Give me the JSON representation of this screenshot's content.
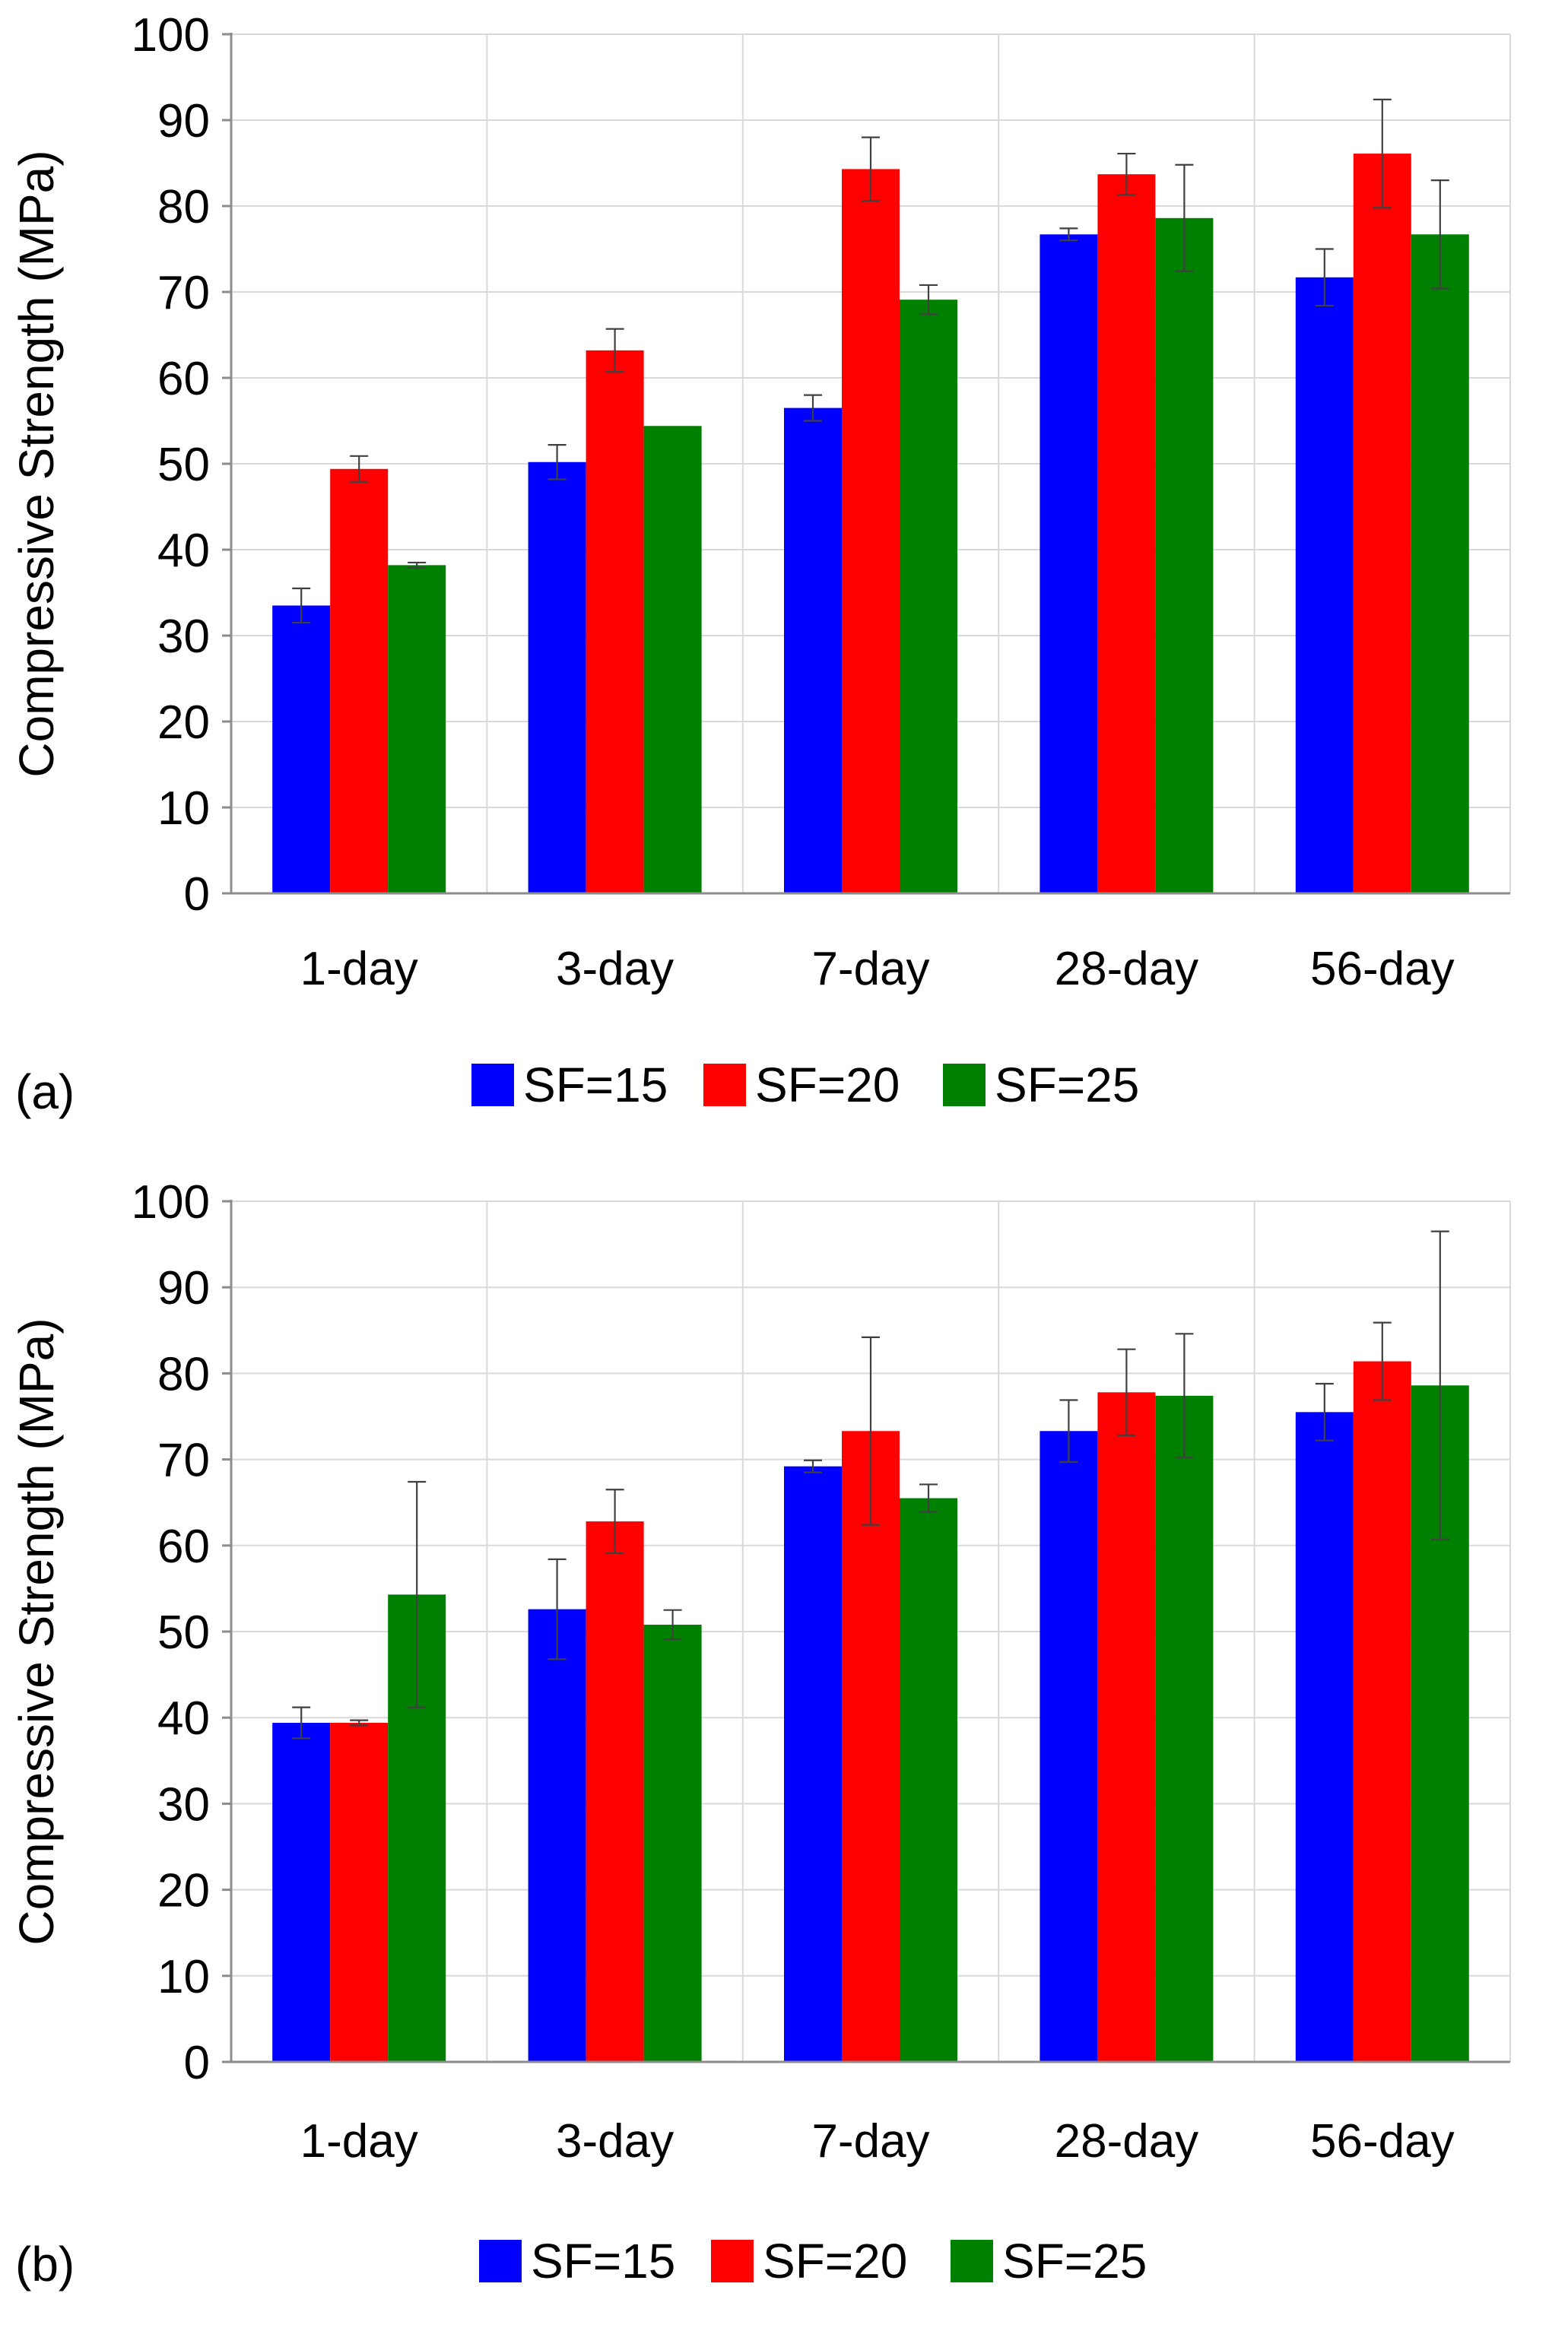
{
  "colors": {
    "SF=15": "#0000ff",
    "SF=20": "#ff0000",
    "SF=25": "#008000",
    "grid": "#d9d9d9",
    "axis": "#8c8c8c",
    "errorbar": "#404040"
  },
  "chart_data": [
    {
      "type": "bar",
      "panel_label": "(a)",
      "title": "",
      "xlabel": "",
      "ylabel": "Compressive Strength (MPa)",
      "ylim": [
        0,
        100
      ],
      "yticks": [
        0,
        10,
        20,
        30,
        40,
        50,
        60,
        70,
        80,
        90,
        100
      ],
      "grid": true,
      "legend_position": "bottom",
      "categories": [
        "1-day",
        "3-day",
        "7-day",
        "28-day",
        "56-day"
      ],
      "series": [
        {
          "name": "SF=15",
          "values": [
            33.5,
            50.2,
            56.5,
            76.7,
            71.7
          ],
          "errors": [
            2.0,
            2.0,
            1.5,
            0.7,
            3.3
          ]
        },
        {
          "name": "SF=20",
          "values": [
            49.4,
            63.2,
            84.3,
            83.7,
            86.1
          ],
          "errors": [
            1.5,
            2.5,
            3.7,
            2.4,
            6.3
          ]
        },
        {
          "name": "SF=25",
          "values": [
            38.2,
            54.4,
            69.1,
            78.6,
            76.7
          ],
          "errors": [
            0.3,
            0.0,
            1.7,
            6.2,
            6.3
          ]
        }
      ]
    },
    {
      "type": "bar",
      "panel_label": "(b)",
      "title": "",
      "xlabel": "",
      "ylabel": "Compressive Strength (MPa)",
      "ylim": [
        0,
        100
      ],
      "yticks": [
        0,
        10,
        20,
        30,
        40,
        50,
        60,
        70,
        80,
        90,
        100
      ],
      "grid": true,
      "legend_position": "bottom",
      "categories": [
        "1-day",
        "3-day",
        "7-day",
        "28-day",
        "56-day"
      ],
      "series": [
        {
          "name": "SF=15",
          "values": [
            39.4,
            52.6,
            69.2,
            73.3,
            75.5
          ],
          "errors": [
            1.8,
            5.8,
            0.7,
            3.6,
            3.3
          ]
        },
        {
          "name": "SF=20",
          "values": [
            39.4,
            62.8,
            73.3,
            77.8,
            81.4
          ],
          "errors": [
            0.3,
            3.7,
            10.9,
            5.0,
            4.5
          ]
        },
        {
          "name": "SF=25",
          "values": [
            54.3,
            50.8,
            65.5,
            77.4,
            78.6
          ],
          "errors": [
            13.1,
            1.7,
            1.6,
            7.2,
            17.9
          ]
        }
      ]
    }
  ]
}
